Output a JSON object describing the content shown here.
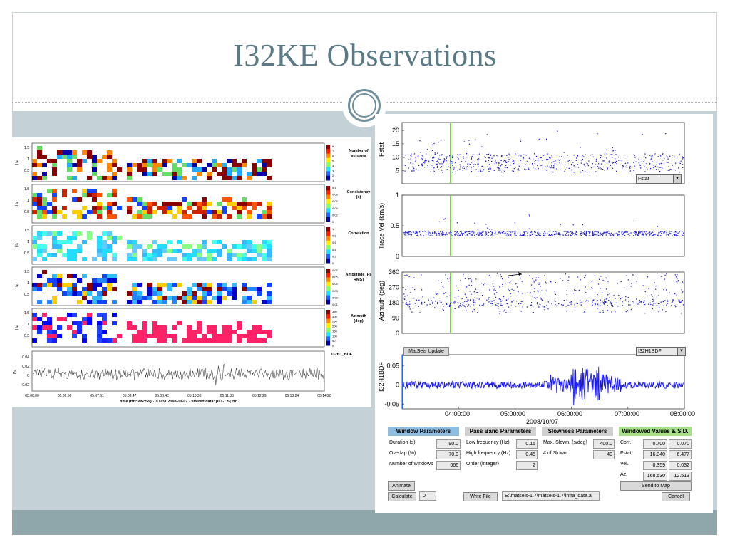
{
  "slide": {
    "title": "I32KE Observations"
  },
  "left_figure": {
    "panels": [
      {
        "label": "Number of sensors",
        "ylabel": "Hz",
        "ticks": [
          "1.5",
          "1",
          "0.5"
        ],
        "cbar_ticks": [
          "8",
          "7",
          "6",
          "5",
          "4",
          "3",
          "2",
          "1"
        ]
      },
      {
        "label": "Consistency (s)",
        "ylabel": "Hz",
        "ticks": [
          "1.5",
          "1",
          "0.5"
        ],
        "cbar_ticks": [
          "0.1",
          "0.08",
          "0.06",
          "0.04",
          "0.02",
          "0"
        ]
      },
      {
        "label": "Correlation",
        "ylabel": "Hz",
        "ticks": [
          "1.5",
          "1",
          "0.5"
        ],
        "cbar_ticks": [
          "1",
          "0.8",
          "0.6",
          "0.4",
          "0.2",
          "0"
        ]
      },
      {
        "label": "Amplitude (Pa RMS)",
        "ylabel": "Hz",
        "ticks": [
          "1.5",
          "1",
          "0.5"
        ],
        "cbar_ticks": [
          "0.06",
          "0.05",
          "0.04",
          "0.03",
          "0.02",
          "0.01"
        ]
      },
      {
        "label": "Azimuth (deg)",
        "ylabel": "Hz",
        "ticks": [
          "1.5",
          "1",
          "0.5"
        ],
        "cbar_ticks": [
          "350",
          "300",
          "250",
          "200",
          "150",
          "100",
          "50",
          "0"
        ]
      }
    ],
    "trace_label": "I32H1_BDF",
    "trace_ylabel": "Pa",
    "trace_ticks": [
      "0.04",
      "0.02",
      "0",
      "-0.02"
    ],
    "time_ticks": [
      "05:06:00",
      "05:06:56",
      "05:07:51",
      "05:08:47",
      "05:09:42",
      "05:10:38",
      "05:11:33",
      "05:12:29",
      "05:13:24",
      "05:14:20"
    ],
    "xlabel": "time (HH:MM:SS) - JD281 2008-10-07 - filtered data: [0.1-1.5] Hz"
  },
  "right_figure": {
    "fstat": {
      "ylabel": "Fstat",
      "ticks": [
        "20",
        "15",
        "10",
        "5"
      ],
      "dropdown": "Fstat"
    },
    "tracevel": {
      "ylabel": "Trace Vel (km/s)",
      "ticks": [
        "1",
        "0.5",
        "0"
      ]
    },
    "azimuth": {
      "ylabel": "Azimuth (deg)",
      "ticks": [
        "360",
        "270",
        "180",
        "90",
        "0"
      ]
    },
    "waveform": {
      "ylabel": "I32H1BDF",
      "ticks": [
        "0.05",
        "0",
        "-0.05"
      ],
      "update_button": "MatSeis Update",
      "dropdown": "I32H1BDF"
    },
    "time_ticks": [
      "04:00:00",
      "05:00:00",
      "06:00:00",
      "07:00:00",
      "08:00:00"
    ],
    "date_label": "2008/10/07",
    "window_params": {
      "header": "Window Parameters",
      "rows": [
        {
          "label": "Duration (s)",
          "value": "90.0"
        },
        {
          "label": "Overlap (%)",
          "value": "70.0"
        },
        {
          "label": "Number of windows",
          "value": "666"
        }
      ]
    },
    "passband_params": {
      "header": "Pass Band Parameters",
      "rows": [
        {
          "label": "Low frequency (Hz)",
          "value": "0.15"
        },
        {
          "label": "High frequency (Hz)",
          "value": "0.45"
        },
        {
          "label": "Order (integer)",
          "value": "2"
        }
      ]
    },
    "slowness_params": {
      "header": "Slowness Parameters",
      "rows": [
        {
          "label": "Max. Slown. (s/deg)",
          "value": "400.0"
        },
        {
          "label": "# of Slown.",
          "value": "40"
        }
      ]
    },
    "windowed_values": {
      "header": "Windowed Values & S.D.",
      "rows": [
        {
          "label": "Corr.",
          "value": "0.700",
          "sd": "0.070"
        },
        {
          "label": "Fstat",
          "value": "16.340",
          "sd": "6.477"
        },
        {
          "label": "Vel.",
          "value": "0.359",
          "sd": "0.032"
        },
        {
          "label": "Az.",
          "value": "168.530",
          "sd": "12.513"
        }
      ],
      "send_button": "Send to Map"
    },
    "animate_button": "Animate",
    "calculate_button": "Calculate",
    "calc_count": "0",
    "write_file_button": "Write File",
    "file_path": "E:\\matseis-1.7\\matseis-1.7\\infra_data.a",
    "cancel_button": "Cancel"
  },
  "colors": {
    "title": "#5b7a86",
    "content_bg": "#c4d1d6",
    "band": "#8fa6ab",
    "points": "#2222cc",
    "green_marker": "#7ccf4a",
    "window_head": "#8fbde0",
    "passband_head": "#d0d0d0",
    "windowed_head": "#a8e08a"
  }
}
